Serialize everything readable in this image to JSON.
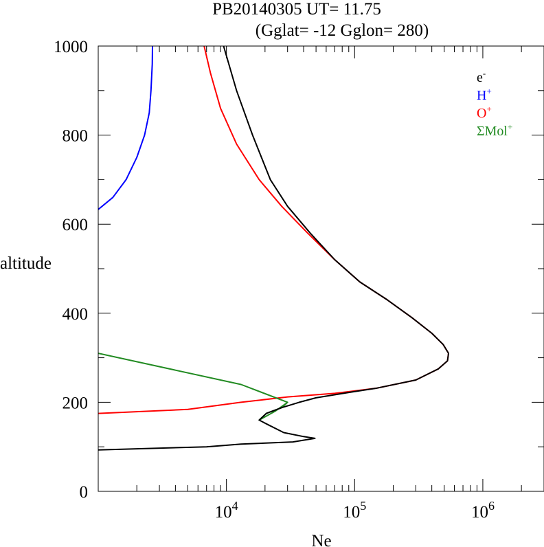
{
  "chart_data": {
    "type": "line",
    "title": "PB20140305   UT=  11.75",
    "subtitle": "(Gglat= -12   Gglon=  280)",
    "xlabel": "Ne",
    "ylabel": "altitude",
    "x_scale": "log",
    "xlim": [
      1000,
      3000000
    ],
    "ylim": [
      0,
      1000
    ],
    "x_ticks": [
      {
        "value": 10000,
        "base": "10",
        "exp": "4"
      },
      {
        "value": 100000,
        "base": "10",
        "exp": "5"
      },
      {
        "value": 1000000,
        "base": "10",
        "exp": "6"
      }
    ],
    "y_ticks": [
      {
        "value": 0,
        "label": "0"
      },
      {
        "value": 200,
        "label": "200"
      },
      {
        "value": 400,
        "label": "400"
      },
      {
        "value": 600,
        "label": "600"
      },
      {
        "value": 800,
        "label": "800"
      },
      {
        "value": 1000,
        "label": "1000"
      }
    ],
    "legend_position": "top-right",
    "series": [
      {
        "name": "e-",
        "legend_base": "e",
        "legend_sup": "-",
        "color": "#000000",
        "points": [
          [
            1000,
            93
          ],
          [
            7000,
            100
          ],
          [
            13000,
            106
          ],
          [
            33000,
            111
          ],
          [
            49000,
            119
          ],
          [
            40000,
            123
          ],
          [
            28000,
            132
          ],
          [
            21000,
            150
          ],
          [
            18000,
            160
          ],
          [
            20500,
            175
          ],
          [
            27000,
            188
          ],
          [
            37000,
            200
          ],
          [
            50000,
            210
          ],
          [
            90000,
            222
          ],
          [
            150000,
            232
          ],
          [
            300000,
            250
          ],
          [
            450000,
            275
          ],
          [
            530000,
            293
          ],
          [
            540000,
            310
          ],
          [
            490000,
            330
          ],
          [
            400000,
            355
          ],
          [
            280000,
            390
          ],
          [
            180000,
            430
          ],
          [
            110000,
            470
          ],
          [
            70000,
            520
          ],
          [
            45000,
            580
          ],
          [
            30000,
            640
          ],
          [
            22000,
            700
          ],
          [
            16000,
            800
          ],
          [
            12000,
            900
          ],
          [
            9500,
            1000
          ]
        ]
      },
      {
        "name": "H+",
        "legend_base": "H",
        "legend_sup": "+",
        "color": "#0000ff",
        "points": [
          [
            1000,
            633
          ],
          [
            1300,
            660
          ],
          [
            1650,
            700
          ],
          [
            2000,
            750
          ],
          [
            2300,
            800
          ],
          [
            2500,
            850
          ],
          [
            2580,
            900
          ],
          [
            2640,
            960
          ],
          [
            2650,
            1000
          ]
        ]
      },
      {
        "name": "O+",
        "legend_base": "O",
        "legend_sup": "+",
        "color": "#ff0000",
        "points": [
          [
            1000,
            175
          ],
          [
            5000,
            184
          ],
          [
            13000,
            200
          ],
          [
            30000,
            212
          ],
          [
            70000,
            220
          ],
          [
            150000,
            232
          ],
          [
            300000,
            250
          ],
          [
            450000,
            275
          ],
          [
            530000,
            293
          ],
          [
            540000,
            310
          ],
          [
            490000,
            330
          ],
          [
            400000,
            355
          ],
          [
            280000,
            390
          ],
          [
            180000,
            430
          ],
          [
            110000,
            470
          ],
          [
            70000,
            520
          ],
          [
            43000,
            580
          ],
          [
            27000,
            640
          ],
          [
            18000,
            700
          ],
          [
            12000,
            780
          ],
          [
            9000,
            860
          ],
          [
            7500,
            940
          ],
          [
            6700,
            1000
          ]
        ]
      },
      {
        "name": "ΣMol+",
        "legend_base": "ΣMol",
        "legend_sup": "+",
        "color": "#228b22",
        "points": [
          [
            1000,
            310
          ],
          [
            13000,
            240
          ],
          [
            30000,
            200
          ],
          [
            24000,
            180
          ],
          [
            18000,
            160
          ],
          [
            20500,
            175
          ],
          [
            27000,
            188
          ],
          [
            30000,
            200
          ]
        ]
      }
    ]
  }
}
